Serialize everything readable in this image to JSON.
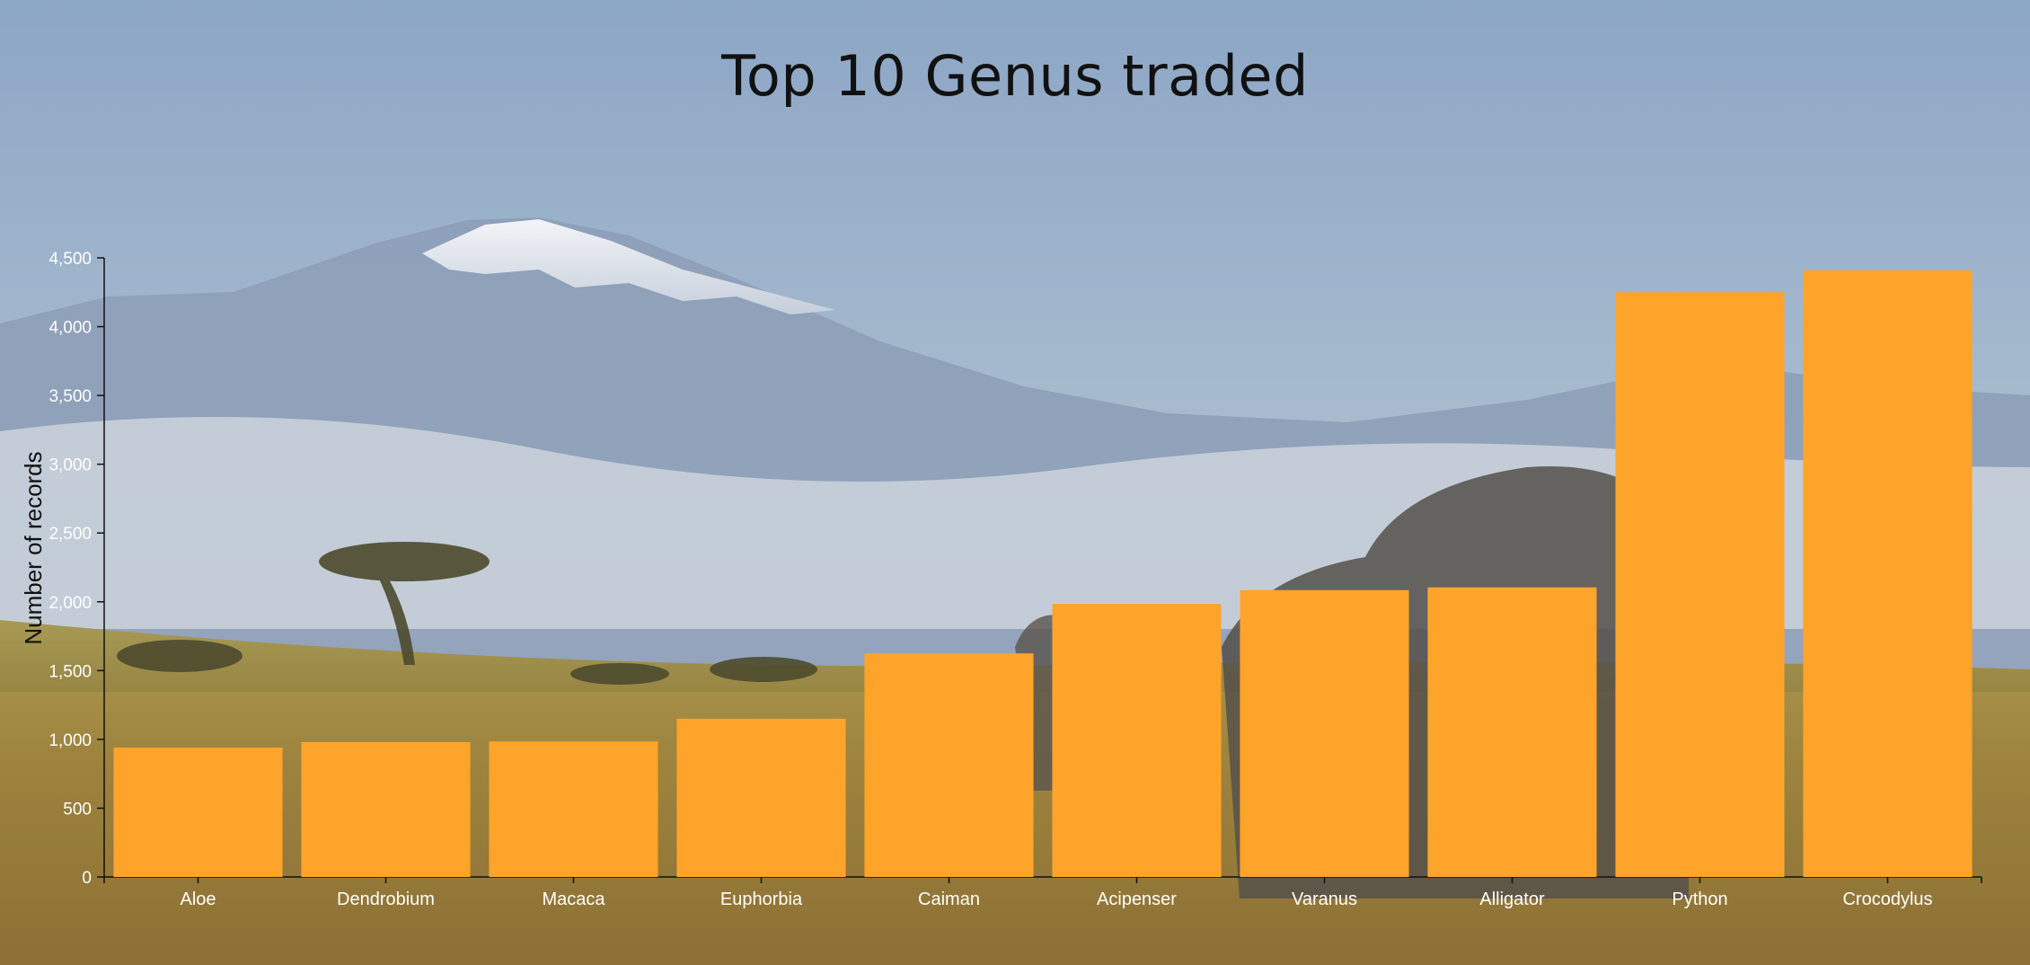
{
  "colors": {
    "bar": "#FFA42B",
    "axis": "#111111"
  },
  "chart_data": {
    "type": "bar",
    "title": "Top 10 Genus traded",
    "xlabel": "",
    "ylabel": "Number of records",
    "categories": [
      "Aloe",
      "Dendrobium",
      "Macaca",
      "Euphorbia",
      "Caiman",
      "Acipenser",
      "Varanus",
      "Alligator",
      "Python",
      "Crocodylus"
    ],
    "values": [
      940,
      980,
      985,
      1150,
      1625,
      1985,
      2085,
      2105,
      4250,
      4410
    ],
    "ylim": [
      0,
      4500
    ],
    "yticks": [
      0,
      500,
      1000,
      1500,
      2000,
      2500,
      3000,
      3500,
      4000,
      4500
    ],
    "ytick_labels": [
      "0",
      "500",
      "1,000",
      "1,500",
      "2,000",
      "2,500",
      "3,000",
      "3,500",
      "4,000",
      "4,500"
    ],
    "grid": false,
    "legend": "none"
  }
}
